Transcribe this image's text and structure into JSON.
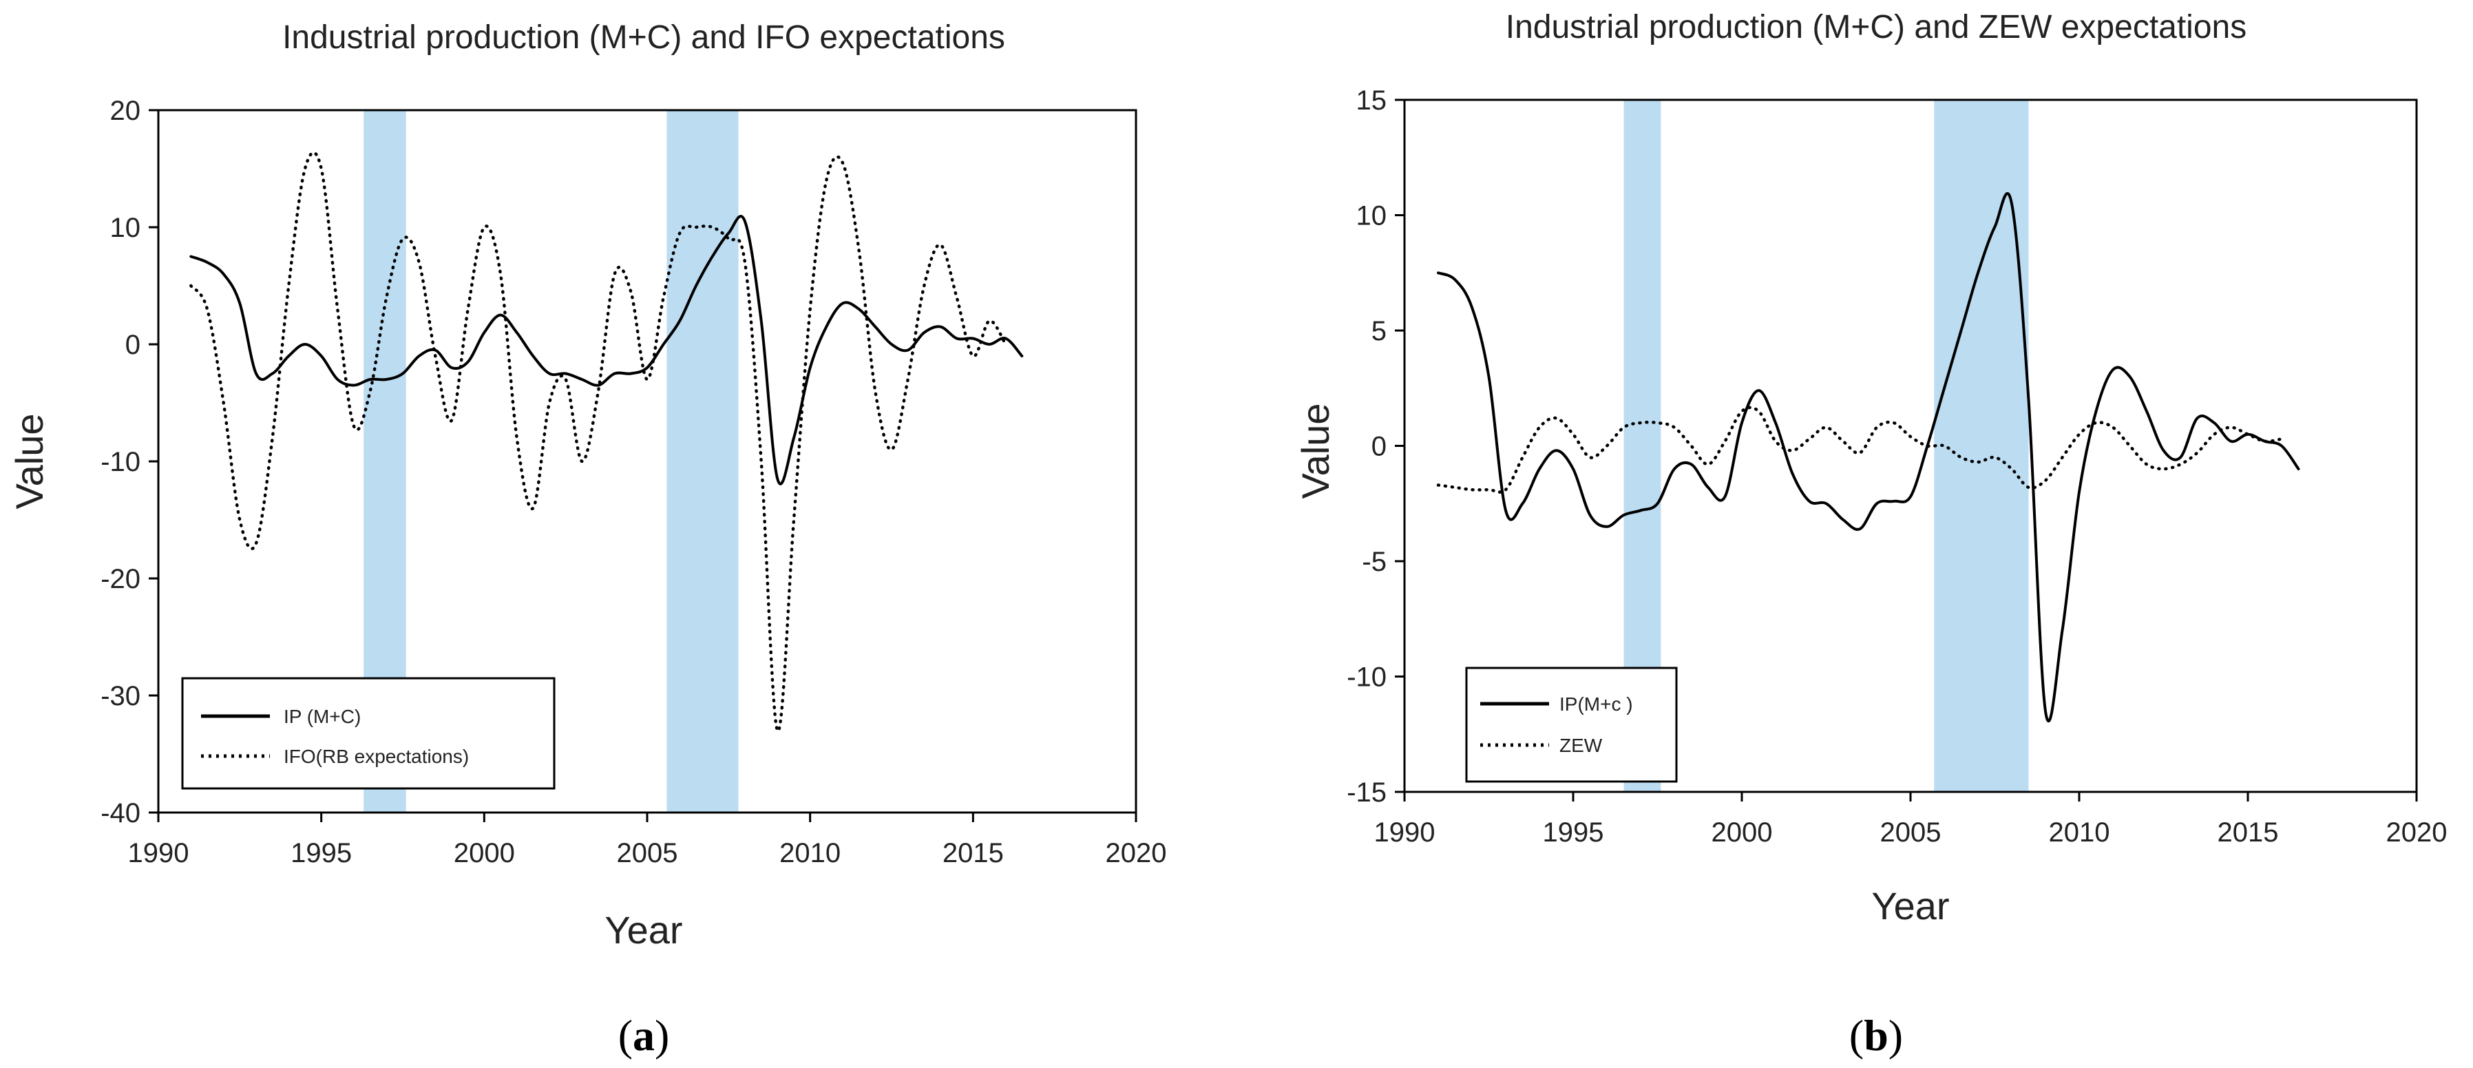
{
  "colors": {
    "shade": "#bcdcf2",
    "line": "#000000",
    "text": "#222222"
  },
  "chart_data": [
    {
      "type": "line",
      "panel_label": "a",
      "title": "Industrial production (M+C)  and IFO expectations",
      "xlabel": "Year",
      "ylabel": "Value",
      "xlim": [
        1990,
        2020
      ],
      "ylim": [
        -40,
        20
      ],
      "xticks": [
        1990,
        1995,
        2000,
        2005,
        2010,
        2015,
        2020
      ],
      "yticks": [
        -40,
        -30,
        -20,
        -10,
        0,
        10,
        20
      ],
      "grid": false,
      "legend_position": "bottom-left",
      "shaded_periods": [
        [
          1996.3,
          1997.6
        ],
        [
          2005.6,
          2007.8
        ]
      ],
      "series": [
        {
          "name": "IP (M+C)",
          "style": "solid",
          "x": [
            1991,
            1991.5,
            1992,
            1992.5,
            1993,
            1993.5,
            1994,
            1994.5,
            1995,
            1995.5,
            1996,
            1996.5,
            1997,
            1997.5,
            1998,
            1998.5,
            1999,
            1999.5,
            2000,
            2000.5,
            2001,
            2001.5,
            2002,
            2002.5,
            2003,
            2003.5,
            2004,
            2004.5,
            2005,
            2005.5,
            2006,
            2006.5,
            2007,
            2007.5,
            2008,
            2008.5,
            2009,
            2009.5,
            2010,
            2010.5,
            2011,
            2011.5,
            2012,
            2012.5,
            2013,
            2013.5,
            2014,
            2014.5,
            2015,
            2015.5,
            2016,
            2016.5
          ],
          "values": [
            7.5,
            7.0,
            6.0,
            3.5,
            -2.5,
            -2.5,
            -1.0,
            0.0,
            -1.0,
            -3.0,
            -3.5,
            -3.0,
            -3.0,
            -2.5,
            -1.0,
            -0.5,
            -2.0,
            -1.5,
            1.0,
            2.5,
            1.0,
            -1.0,
            -2.5,
            -2.5,
            -3.0,
            -3.5,
            -2.5,
            -2.5,
            -2.0,
            0.0,
            2.0,
            5.0,
            7.5,
            9.5,
            10.5,
            2.0,
            -11.5,
            -8.0,
            -2.0,
            1.5,
            3.5,
            3.0,
            1.5,
            0.0,
            -0.5,
            1.0,
            1.5,
            0.5,
            0.5,
            0.0,
            0.5,
            -1.0
          ]
        },
        {
          "name": "IFO(RB expectations)",
          "style": "dotted",
          "x": [
            1991,
            1991.5,
            1992,
            1992.5,
            1993,
            1993.5,
            1994,
            1994.5,
            1995,
            1995.5,
            1996,
            1996.5,
            1997,
            1997.5,
            1998,
            1998.5,
            1999,
            1999.5,
            2000,
            2000.5,
            2001,
            2001.5,
            2002,
            2002.5,
            2003,
            2003.5,
            2004,
            2004.5,
            2005,
            2005.5,
            2006,
            2006.5,
            2007,
            2007.5,
            2008,
            2008.5,
            2009,
            2009.5,
            2010,
            2010.5,
            2011,
            2011.5,
            2012,
            2012.5,
            2013,
            2013.5,
            2014,
            2014.5,
            2015,
            2015.5,
            2016
          ],
          "values": [
            5.0,
            3.0,
            -5.0,
            -15.0,
            -17.0,
            -8.0,
            5.0,
            15.0,
            15.0,
            3.0,
            -7.0,
            -4.0,
            4.0,
            9.0,
            7.0,
            -1.0,
            -6.5,
            3.0,
            10.0,
            6.0,
            -8.0,
            -14.0,
            -5.0,
            -3.0,
            -10.0,
            -4.0,
            6.0,
            4.5,
            -3.0,
            4.0,
            9.5,
            10.0,
            10.0,
            9.0,
            7.0,
            -10.0,
            -33.0,
            -15.0,
            3.0,
            14.0,
            15.5,
            8.0,
            -4.0,
            -9.0,
            -3.0,
            5.0,
            8.5,
            4.0,
            -1.0,
            2.0,
            0.0
          ]
        }
      ]
    },
    {
      "type": "line",
      "panel_label": "b",
      "title": "Industrial production (M+C) and ZEW expectations",
      "xlabel": "Year",
      "ylabel": "Value",
      "xlim": [
        1990,
        2020
      ],
      "ylim": [
        -15,
        15
      ],
      "xticks": [
        1990,
        1995,
        2000,
        2005,
        2010,
        2015,
        2020
      ],
      "yticks": [
        -15,
        -10,
        -5,
        0,
        5,
        10,
        15
      ],
      "grid": false,
      "legend_position": "bottom-left",
      "shaded_periods": [
        [
          1996.5,
          1997.6
        ],
        [
          2005.7,
          2008.5
        ]
      ],
      "series": [
        {
          "name": "IP(M+c )",
          "style": "solid",
          "x": [
            1991,
            1991.5,
            1992,
            1992.5,
            1993,
            1993.5,
            1994,
            1994.5,
            1995,
            1995.5,
            1996,
            1996.5,
            1997,
            1997.5,
            1998,
            1998.5,
            1999,
            1999.5,
            2000,
            2000.5,
            2001,
            2001.5,
            2002,
            2002.5,
            2003,
            2003.5,
            2004,
            2004.5,
            2005,
            2005.5,
            2006,
            2006.5,
            2007,
            2007.5,
            2008,
            2008.5,
            2009,
            2009.5,
            2010,
            2010.5,
            2011,
            2011.5,
            2012,
            2012.5,
            2013,
            2013.5,
            2014,
            2014.5,
            2015,
            2015.5,
            2016,
            2016.5
          ],
          "values": [
            7.5,
            7.2,
            6.0,
            3.0,
            -2.8,
            -2.5,
            -1.0,
            -0.2,
            -1.0,
            -3.0,
            -3.5,
            -3.0,
            -2.8,
            -2.5,
            -1.0,
            -0.8,
            -1.8,
            -2.2,
            1.0,
            2.4,
            1.0,
            -1.2,
            -2.4,
            -2.5,
            -3.2,
            -3.6,
            -2.5,
            -2.4,
            -2.2,
            0.0,
            2.5,
            5.0,
            7.5,
            9.5,
            10.5,
            2.0,
            -11.5,
            -8.0,
            -2.0,
            1.5,
            3.3,
            3.0,
            1.5,
            -0.2,
            -0.5,
            1.2,
            1.0,
            0.2,
            0.5,
            0.2,
            0.0,
            -1.0
          ]
        },
        {
          "name": "ZEW",
          "style": "dotted",
          "x": [
            1991,
            1991.5,
            1992,
            1992.5,
            1993,
            1993.5,
            1994,
            1994.5,
            1995,
            1995.5,
            1996,
            1996.5,
            1997,
            1997.5,
            1998,
            1998.5,
            1999,
            1999.5,
            2000,
            2000.5,
            2001,
            2001.5,
            2002,
            2002.5,
            2003,
            2003.5,
            2004,
            2004.5,
            2005,
            2005.5,
            2006,
            2006.5,
            2007,
            2007.5,
            2008,
            2008.5,
            2009,
            2009.5,
            2010,
            2010.5,
            2011,
            2011.5,
            2012,
            2012.5,
            2013,
            2013.5,
            2014,
            2014.5,
            2015,
            2015.5,
            2016
          ],
          "values": [
            -1.7,
            -1.8,
            -1.9,
            -1.9,
            -1.9,
            -0.5,
            0.8,
            1.2,
            0.5,
            -0.5,
            0.0,
            0.8,
            1.0,
            1.0,
            0.8,
            0.0,
            -0.8,
            0.2,
            1.5,
            1.5,
            0.2,
            -0.2,
            0.3,
            0.8,
            0.2,
            -0.3,
            0.8,
            1.0,
            0.4,
            0.0,
            0.0,
            -0.5,
            -0.7,
            -0.5,
            -1.0,
            -1.8,
            -1.5,
            -0.5,
            0.5,
            1.0,
            0.8,
            0.0,
            -0.8,
            -1.0,
            -0.8,
            -0.3,
            0.5,
            0.8,
            0.5,
            0.2,
            0.3
          ]
        }
      ]
    }
  ]
}
